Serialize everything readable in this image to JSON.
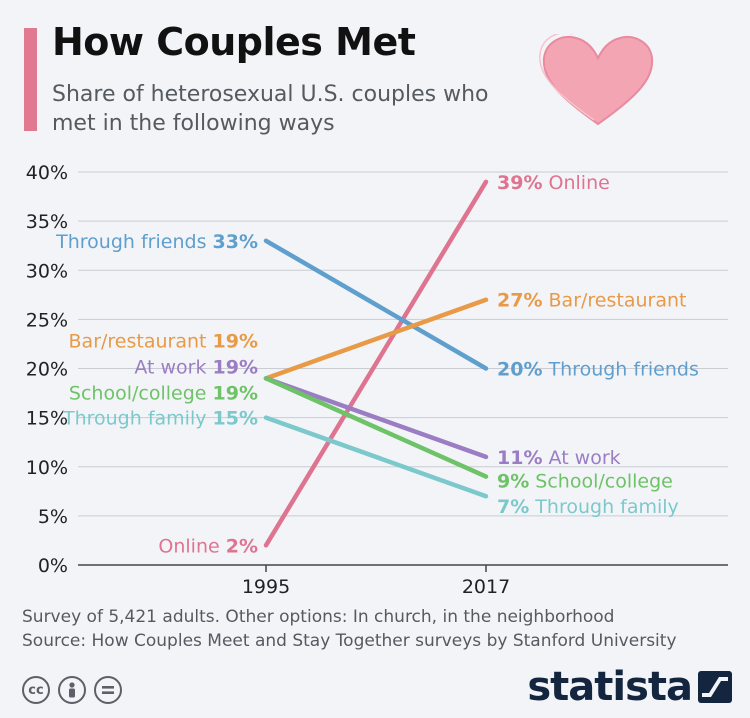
{
  "header": {
    "title": "How Couples Met",
    "subtitle": "Share of heterosexual U.S. couples who met in the following ways"
  },
  "footer": {
    "note": "Survey of 5,421 adults. Other options: In church, in the neighborhood",
    "source": "Source: How Couples Meet and Stay Together surveys by Stanford University",
    "brand": "statista"
  },
  "icons": [
    "heart-icon",
    "cc-icon",
    "by-icon",
    "nd-icon",
    "statista-logo-icon"
  ],
  "chart_data": {
    "type": "line",
    "x": [
      "1995",
      "2017"
    ],
    "ylim": [
      0,
      40
    ],
    "yticks": [
      0,
      5,
      10,
      15,
      20,
      25,
      30,
      35,
      40
    ],
    "ytick_labels": [
      "0%",
      "5%",
      "10%",
      "15%",
      "20%",
      "25%",
      "30%",
      "35%",
      "40%"
    ],
    "grid": true,
    "series": [
      {
        "name": "Online",
        "values": [
          2,
          39
        ],
        "labels": [
          "2%",
          "39%"
        ],
        "color": "#de7490"
      },
      {
        "name": "Through friends",
        "values": [
          33,
          20
        ],
        "labels": [
          "33%",
          "20%"
        ],
        "color": "#5f9fcd"
      },
      {
        "name": "Bar/restaurant",
        "values": [
          19,
          27
        ],
        "labels": [
          "19%",
          "27%"
        ],
        "color": "#e89a46"
      },
      {
        "name": "At work",
        "values": [
          19,
          11
        ],
        "labels": [
          "19%",
          "11%"
        ],
        "color": "#9b7dc4"
      },
      {
        "name": "School/college",
        "values": [
          19,
          9
        ],
        "labels": [
          "19%",
          "9%"
        ],
        "color": "#6ec267"
      },
      {
        "name": "Through family",
        "values": [
          15,
          7
        ],
        "labels": [
          "15%",
          "7%"
        ],
        "color": "#7cc9cc"
      }
    ]
  }
}
